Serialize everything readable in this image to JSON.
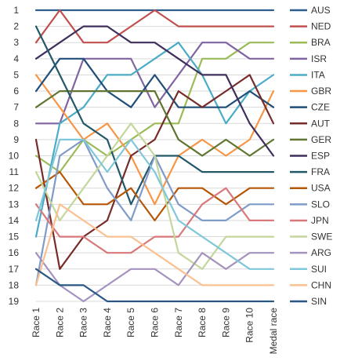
{
  "chart_data": {
    "type": "line",
    "title": "",
    "xlabel": "",
    "ylabel": "",
    "x": [
      "Race 1",
      "Race 2",
      "Race 3",
      "Race 4",
      "Race 5",
      "Race 6",
      "Race 7",
      "Race 8",
      "Race 9",
      "Race 10",
      "Medal race"
    ],
    "y_ticks": [
      1,
      2,
      3,
      4,
      5,
      6,
      7,
      8,
      9,
      10,
      11,
      12,
      13,
      14,
      15,
      16,
      17,
      18,
      19
    ],
    "ylim": [
      1,
      19
    ],
    "y_inverted": true,
    "grid": true,
    "legend_position": "right",
    "series": [
      {
        "name": "AUS",
        "color": "#2E5E8E",
        "values": [
          1,
          1,
          1,
          1,
          1,
          1,
          1,
          1,
          1,
          1,
          1
        ]
      },
      {
        "name": "NED",
        "color": "#C0504D",
        "values": [
          3,
          1,
          3,
          3,
          2,
          1,
          2,
          2,
          2,
          2,
          2
        ]
      },
      {
        "name": "BRA",
        "color": "#9BBB59",
        "values": [
          10,
          11,
          9,
          10,
          9,
          8,
          8,
          4,
          4,
          3,
          3
        ]
      },
      {
        "name": "ISR",
        "color": "#8064A2",
        "values": [
          8,
          8,
          4,
          4,
          4,
          7,
          5,
          3,
          3,
          4,
          4
        ]
      },
      {
        "name": "ITA",
        "color": "#4BACC6",
        "values": [
          15,
          8,
          7,
          5,
          5,
          4,
          3,
          5,
          8,
          6,
          5
        ]
      },
      {
        "name": "GBR",
        "color": "#F79646",
        "values": [
          5,
          7,
          9,
          8,
          10,
          13,
          10,
          9,
          10,
          9,
          6
        ]
      },
      {
        "name": "CZE",
        "color": "#1F4E79",
        "values": [
          6,
          4,
          4,
          6,
          7,
          5,
          7,
          7,
          7,
          6,
          7
        ]
      },
      {
        "name": "AUT",
        "color": "#772C2A",
        "values": [
          9,
          17,
          15,
          14,
          10,
          9,
          6,
          7,
          6,
          5,
          8
        ]
      },
      {
        "name": "GER",
        "color": "#5F7530",
        "values": [
          7,
          6,
          6,
          6,
          6,
          6,
          9,
          10,
          9,
          10,
          9
        ]
      },
      {
        "name": "ESP",
        "color": "#3F2F5C",
        "values": [
          4,
          3,
          2,
          2,
          3,
          3,
          4,
          5,
          5,
          8,
          10
        ]
      },
      {
        "name": "FRA",
        "color": "#215968",
        "values": [
          2,
          5,
          8,
          9,
          13,
          10,
          10,
          11,
          11,
          11,
          11
        ]
      },
      {
        "name": "USA",
        "color": "#B65708",
        "values": [
          12,
          11,
          13,
          13,
          12,
          14,
          12,
          12,
          13,
          12,
          12
        ]
      },
      {
        "name": "SLO",
        "color": "#7F9BC8",
        "values": [
          18,
          10,
          9,
          12,
          14,
          10,
          13,
          14,
          14,
          13,
          13
        ]
      },
      {
        "name": "JPN",
        "color": "#D9787A",
        "values": [
          13,
          15,
          15,
          16,
          16,
          15,
          15,
          13,
          12,
          14,
          14
        ]
      },
      {
        "name": "SWE",
        "color": "#C3D69B",
        "values": [
          11,
          14,
          12,
          10,
          8,
          10,
          16,
          17,
          15,
          15,
          15
        ]
      },
      {
        "name": "ARG",
        "color": "#A593BF",
        "values": [
          16,
          18,
          19,
          18,
          17,
          17,
          18,
          16,
          17,
          16,
          16
        ]
      },
      {
        "name": "SUI",
        "color": "#7FC7DA",
        "values": [
          14,
          9,
          9,
          11,
          9,
          11,
          14,
          15,
          16,
          17,
          17
        ]
      },
      {
        "name": "CHN",
        "color": "#FAC090",
        "values": [
          18,
          13,
          14,
          15,
          15,
          16,
          17,
          18,
          18,
          18,
          18
        ]
      },
      {
        "name": "SIN",
        "color": "#2A5783",
        "values": [
          17,
          18,
          18,
          19,
          19,
          19,
          19,
          19,
          19,
          19,
          19
        ]
      }
    ]
  }
}
